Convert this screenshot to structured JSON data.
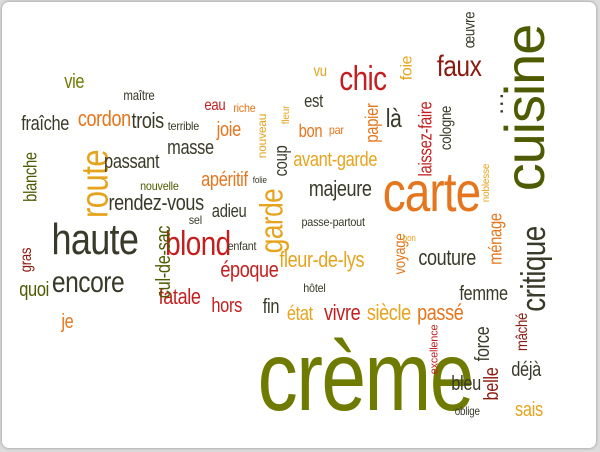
{
  "colors": {
    "olive": "#6e7b00",
    "dark_olive": "#4f5b00",
    "red": "#c41f1f",
    "dark_red": "#8a1b10",
    "orange": "#e5761d",
    "gold": "#e6a41e",
    "dark": "#3a3a2a"
  },
  "words": [
    {
      "text": "crème",
      "color": "#6e7b00"
    },
    {
      "text": "cuisine",
      "color": "#4f5b00"
    },
    {
      "text": "carte",
      "color": "#e5761d"
    },
    {
      "text": "haute",
      "color": "#3a3a2a"
    },
    {
      "text": "route",
      "color": "#e6a41e"
    },
    {
      "text": "chic",
      "color": "#c41f1f"
    },
    {
      "text": "blond",
      "color": "#c41f1f"
    },
    {
      "text": "garde",
      "color": "#e6a41e"
    },
    {
      "text": "critique",
      "color": "#3a3a2a"
    },
    {
      "text": "faux",
      "color": "#8a1b10"
    },
    {
      "text": "encore",
      "color": "#3a3a2a"
    },
    {
      "text": "couture",
      "color": "#3a3a2a"
    },
    {
      "text": "fleur-de-lys",
      "color": "#e6a41e"
    },
    {
      "text": "avant-garde",
      "color": "#e6a41e"
    },
    {
      "text": "majeure",
      "color": "#3a3a2a"
    },
    {
      "text": "époque",
      "color": "#c41f1f"
    },
    {
      "text": "fatale",
      "color": "#c41f1f"
    },
    {
      "text": "vivre",
      "color": "#c41f1f"
    },
    {
      "text": "siècle",
      "color": "#e6a41e"
    },
    {
      "text": "passé",
      "color": "#e5761d"
    },
    {
      "text": "fin",
      "color": "#3a3a2a"
    },
    {
      "text": "état",
      "color": "#e6a41e"
    },
    {
      "text": "hors",
      "color": "#c41f1f"
    },
    {
      "text": "femme",
      "color": "#3a3a2a"
    },
    {
      "text": "force",
      "color": "#3a3a2a"
    },
    {
      "text": "belle",
      "color": "#8a1b10"
    },
    {
      "text": "mâché",
      "color": "#8a1b10"
    },
    {
      "text": "déjà",
      "color": "#3a3a2a"
    },
    {
      "text": "bleu",
      "color": "#3a3a2a"
    },
    {
      "text": "sais",
      "color": "#e6a41e"
    },
    {
      "text": "oblige",
      "color": "#3a3a2a"
    },
    {
      "text": "excellence",
      "color": "#c41f1f"
    },
    {
      "text": "cordon",
      "color": "#e5761d"
    },
    {
      "text": "trois",
      "color": "#3a3a2a"
    },
    {
      "text": "masse",
      "color": "#3a3a2a"
    },
    {
      "text": "passant",
      "color": "#3a3a2a"
    },
    {
      "text": "rendez-vous",
      "color": "#3a3a2a"
    },
    {
      "text": "apéritif",
      "color": "#e5761d"
    },
    {
      "text": "joie",
      "color": "#e5761d"
    },
    {
      "text": "coup",
      "color": "#3a3a2a"
    },
    {
      "text": "adieu",
      "color": "#3a3a2a"
    },
    {
      "text": "là",
      "color": "#3a3a2a"
    },
    {
      "text": "est",
      "color": "#3a3a2a"
    },
    {
      "text": "bon",
      "color": "#e5761d"
    },
    {
      "text": "vu",
      "color": "#e6a41e"
    },
    {
      "text": "foie",
      "color": "#e6a41e"
    },
    {
      "text": "papier",
      "color": "#e5761d"
    },
    {
      "text": "laissez-faire",
      "color": "#c41f1f"
    },
    {
      "text": "cologne",
      "color": "#3a3a2a"
    },
    {
      "text": "ménage",
      "color": "#e5761d"
    },
    {
      "text": "œuvre",
      "color": "#3a3a2a"
    },
    {
      "text": "noblesse",
      "color": "#e6a41e"
    },
    {
      "text": "voyage",
      "color": "#e5761d"
    },
    {
      "text": "cul-de-sac",
      "color": "#4f5b00"
    },
    {
      "text": "gras",
      "color": "#8a1b10"
    },
    {
      "text": "quoi",
      "color": "#4f5b00"
    },
    {
      "text": "je",
      "color": "#e5761d"
    },
    {
      "text": "vie",
      "color": "#6e7b00"
    },
    {
      "text": "fraîche",
      "color": "#3a3a2a"
    },
    {
      "text": "blanche",
      "color": "#4f5b00"
    },
    {
      "text": "maître",
      "color": "#3a3a2a"
    },
    {
      "text": "eau",
      "color": "#c41f1f"
    },
    {
      "text": "riche",
      "color": "#e5761d"
    },
    {
      "text": "terrible",
      "color": "#3a3a2a"
    },
    {
      "text": "nouvelle",
      "color": "#4f5b00"
    },
    {
      "text": "nouveau",
      "color": "#e6a41e"
    },
    {
      "text": "folie",
      "color": "#3a3a2a"
    },
    {
      "text": "fleur",
      "color": "#e6a41e"
    },
    {
      "text": "par",
      "color": "#e5761d"
    },
    {
      "text": "sel",
      "color": "#3a3a2a"
    },
    {
      "text": "enfant",
      "color": "#3a3a2a"
    },
    {
      "text": "passe-partout",
      "color": "#3a3a2a"
    },
    {
      "text": "hôtel",
      "color": "#3a3a2a"
    },
    {
      "text": "bon",
      "color": "#e6a41e"
    },
    {
      "text": "…",
      "color": "#3a3a2a"
    }
  ]
}
